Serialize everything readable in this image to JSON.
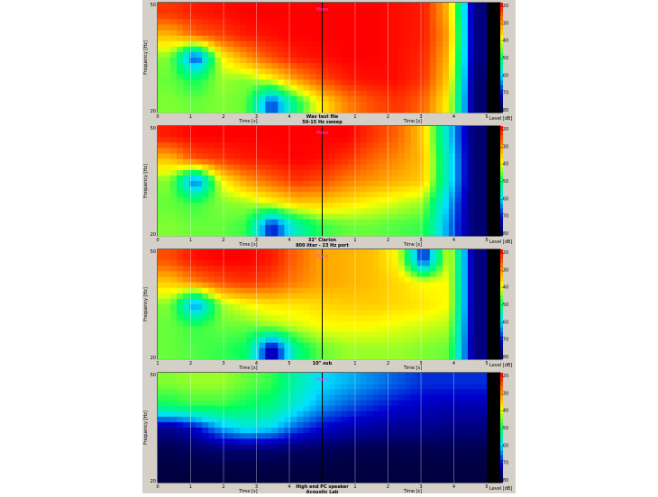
{
  "colors": {
    "panel_bg": "#d4d0c8",
    "colormap": [
      "#000030",
      "#0000d0",
      "#00e0ff",
      "#00ff60",
      "#ffff00",
      "#ff8000",
      "#ff0000"
    ]
  },
  "chart_data": [
    {
      "type": "heatmap",
      "mode_label": "Mono",
      "caption": [
        "Wav test file",
        "50-15 Hz sweep"
      ],
      "ylabel": "Frequency [Hz]",
      "y_ticks": [
        "50",
        "20"
      ],
      "x_ticks_left": [
        "0",
        "1",
        "2",
        "3",
        "4"
      ],
      "x_ticks_right": [
        "1",
        "2",
        "3",
        "4",
        "5"
      ],
      "xlabel_left": "Time [s]",
      "xlabel_right": "Time [s]",
      "colorbar_ticks": [
        "-20",
        "-30",
        "-40",
        "-50",
        "-60",
        "-70",
        "-80"
      ],
      "colorbar_label": "Level [dB]",
      "level_range": [
        -80,
        -20
      ],
      "approx_level_grid_dB": [
        [
          -24,
          -22,
          -21,
          -20,
          -20,
          -20,
          -20,
          -20,
          -20,
          -21,
          -22,
          -35,
          -75
        ],
        [
          -35,
          -28,
          -25,
          -22,
          -21,
          -20,
          -20,
          -20,
          -20,
          -21,
          -22,
          -33,
          -75
        ],
        [
          -45,
          -70,
          -40,
          -32,
          -26,
          -22,
          -21,
          -20,
          -20,
          -21,
          -23,
          -35,
          -75
        ],
        [
          -46,
          -50,
          -44,
          -45,
          -40,
          -32,
          -26,
          -22,
          -21,
          -21,
          -24,
          -37,
          -76
        ],
        [
          -45,
          -46,
          -45,
          -46,
          -68,
          -50,
          -38,
          -30,
          -26,
          -24,
          -28,
          -40,
          -76
        ]
      ]
    },
    {
      "type": "heatmap",
      "mode_label": "Mono",
      "caption": [
        "32\" Clarion",
        "800 liter - 23 Hz port"
      ],
      "ylabel": "Frequency [Hz]",
      "y_ticks": [
        "50",
        "20"
      ],
      "x_ticks_left": [
        "0",
        "1",
        "2",
        "3",
        "4"
      ],
      "x_ticks_right": [
        "1",
        "2",
        "3",
        "4",
        "5"
      ],
      "xlabel_left": "Time [s]",
      "xlabel_right": "Time [s]",
      "colorbar_ticks": [
        "-20",
        "-30",
        "-40",
        "-50",
        "-60",
        "-70",
        "-80"
      ],
      "colorbar_label": "Level [dB]",
      "level_range": [
        -80,
        -20
      ],
      "approx_level_grid_dB": [
        [
          -22,
          -20,
          -20,
          -20,
          -20,
          -20,
          -20,
          -20,
          -24,
          -28,
          -36,
          -60,
          -76
        ],
        [
          -35,
          -26,
          -24,
          -22,
          -21,
          -20,
          -21,
          -24,
          -28,
          -31,
          -35,
          -58,
          -76
        ],
        [
          -45,
          -68,
          -40,
          -32,
          -28,
          -24,
          -26,
          -30,
          -32,
          -34,
          -36,
          -58,
          -76
        ],
        [
          -46,
          -48,
          -45,
          -44,
          -40,
          -36,
          -36,
          -38,
          -40,
          -42,
          -44,
          -62,
          -76
        ],
        [
          -45,
          -46,
          -46,
          -48,
          -70,
          -55,
          -48,
          -46,
          -46,
          -47,
          -48,
          -64,
          -76
        ]
      ]
    },
    {
      "type": "heatmap",
      "mode_label": "Mono",
      "caption": [
        "10\" sub"
      ],
      "ylabel": "Frequency [Hz]",
      "y_ticks": [
        "50",
        "20"
      ],
      "x_ticks_left": [
        "1",
        "2",
        "3",
        "4",
        "5"
      ],
      "x_ticks_right": [
        "1",
        "2",
        "3",
        "4",
        "5"
      ],
      "xlabel_left": "Time [s]",
      "xlabel_right": "Time [s]",
      "colorbar_ticks": [
        "-20",
        "-30",
        "-40",
        "-50",
        "-60",
        "-70",
        "-80"
      ],
      "colorbar_label": "Level [dB]",
      "level_range": [
        -80,
        -20
      ],
      "approx_level_grid_dB": [
        [
          -26,
          -21,
          -20,
          -20,
          -22,
          -28,
          -33,
          -34,
          -35,
          -40,
          -70,
          -40,
          -75
        ],
        [
          -36,
          -30,
          -26,
          -24,
          -26,
          -30,
          -33,
          -34,
          -35,
          -37,
          -40,
          -40,
          -75
        ],
        [
          -45,
          -66,
          -44,
          -40,
          -38,
          -38,
          -37,
          -36,
          -36,
          -37,
          -38,
          -40,
          -75
        ],
        [
          -46,
          -48,
          -46,
          -46,
          -44,
          -42,
          -40,
          -40,
          -40,
          -41,
          -42,
          -43,
          -75
        ],
        [
          -46,
          -47,
          -48,
          -50,
          -74,
          -52,
          -46,
          -44,
          -44,
          -44,
          -45,
          -46,
          -75
        ]
      ]
    },
    {
      "type": "heatmap",
      "mode_label": "Mono",
      "caption": [
        "High end PC speaker",
        "Acoustic Lab"
      ],
      "ylabel": "Frequency [Hz]",
      "y_ticks": [
        "50",
        "20"
      ],
      "x_ticks_left": [
        "0",
        "1",
        "2",
        "3",
        "4"
      ],
      "x_ticks_right": [
        "1",
        "2",
        "3",
        "4",
        "5"
      ],
      "xlabel_left": "Time [s]",
      "xlabel_right": "Time [s]",
      "colorbar_ticks": [
        "-20",
        "-30",
        "-40",
        "-50",
        "-60",
        "-70",
        "-80"
      ],
      "colorbar_label": "Level [dB]",
      "level_range": [
        -80,
        -20
      ],
      "approx_level_grid_dB": [
        [
          -45,
          -44,
          -44,
          -46,
          -48,
          -55,
          -60,
          -62,
          -64,
          -66,
          -68,
          -68,
          -68
        ],
        [
          -50,
          -48,
          -48,
          -50,
          -52,
          -58,
          -63,
          -66,
          -68,
          -70,
          -71,
          -72,
          -72
        ],
        [
          -74,
          -70,
          -62,
          -58,
          -60,
          -66,
          -70,
          -72,
          -73,
          -74,
          -74,
          -75,
          -75
        ],
        [
          -78,
          -77,
          -76,
          -76,
          -76,
          -77,
          -77,
          -78,
          -78,
          -78,
          -78,
          -78,
          -78
        ],
        [
          -79,
          -79,
          -79,
          -79,
          -79,
          -79,
          -79,
          -79,
          -79,
          -79,
          -79,
          -79,
          -79
        ]
      ]
    }
  ]
}
